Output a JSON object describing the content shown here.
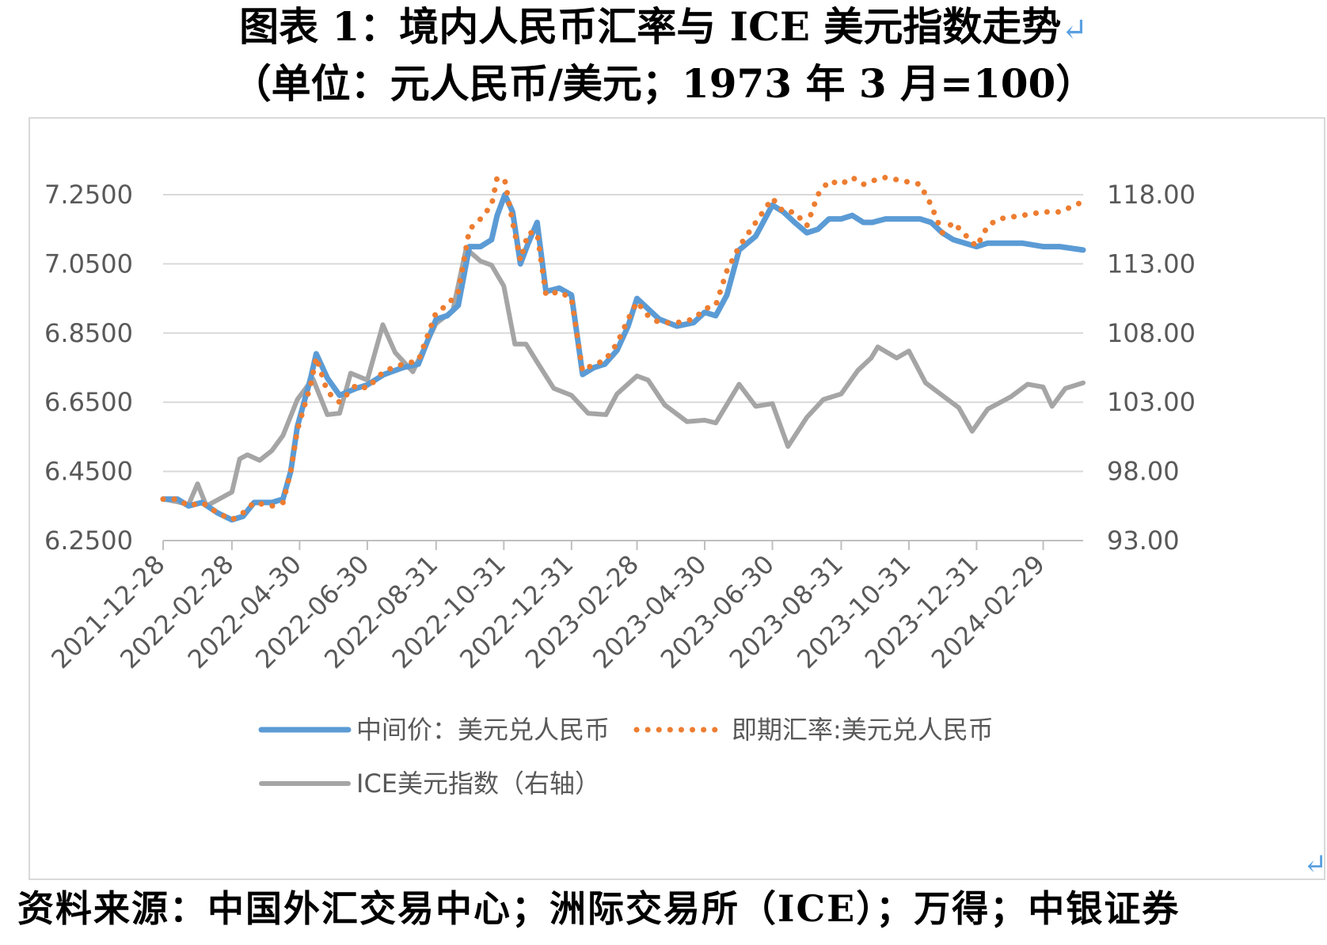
{
  "title_line1": "图表 1：境内人民币汇率与 ICE 美元指数走势",
  "title_line2": "（单位：元人民币/美元；1973 年 3 月=100）",
  "return_mark": "↵",
  "source_text": "资料来源：中国外汇交易中心；洲际交易所（ICE）；万得；中银证券",
  "colors": {
    "series_mid": "#5b9bd5",
    "series_spot": "#ed7d31",
    "series_ice": "#a5a5a5",
    "grid": "#d9d9d9",
    "axis": "#bfbfbf"
  },
  "chart_data": {
    "type": "line",
    "x_tick_labels": [
      "2021-12-28",
      "2022-02-28",
      "2022-04-30",
      "2022-06-30",
      "2022-08-31",
      "2022-10-31",
      "2022-12-31",
      "2023-02-28",
      "2023-04-30",
      "2023-06-30",
      "2023-08-31",
      "2023-10-31",
      "2023-12-31",
      "2024-02-29"
    ],
    "x_range": [
      "2021-12-28",
      "2024-04-05"
    ],
    "y_left": {
      "ticks": [
        "6.2500",
        "6.4500",
        "6.6500",
        "6.8500",
        "7.0500",
        "7.2500"
      ],
      "range": [
        6.25,
        7.25
      ]
    },
    "y_right": {
      "ticks": [
        "93.00",
        "98.00",
        "103.00",
        "108.00",
        "113.00",
        "118.00"
      ],
      "range": [
        93.0,
        118.0
      ]
    },
    "grid": true,
    "legend_position": "bottom",
    "series": [
      {
        "name": "中间价：美元兑人民币",
        "axis": "left",
        "style": "solid",
        "points": [
          [
            "2021-12-28",
            6.37
          ],
          [
            "2022-01-10",
            6.37
          ],
          [
            "2022-01-20",
            6.35
          ],
          [
            "2022-02-01",
            6.36
          ],
          [
            "2022-02-15",
            6.33
          ],
          [
            "2022-02-28",
            6.31
          ],
          [
            "2022-03-10",
            6.32
          ],
          [
            "2022-03-20",
            6.36
          ],
          [
            "2022-04-05",
            6.36
          ],
          [
            "2022-04-15",
            6.37
          ],
          [
            "2022-04-22",
            6.45
          ],
          [
            "2022-04-28",
            6.58
          ],
          [
            "2022-05-10",
            6.72
          ],
          [
            "2022-05-15",
            6.79
          ],
          [
            "2022-05-25",
            6.72
          ],
          [
            "2022-06-05",
            6.67
          ],
          [
            "2022-06-20",
            6.69
          ],
          [
            "2022-06-30",
            6.7
          ],
          [
            "2022-07-15",
            6.73
          ],
          [
            "2022-08-01",
            6.75
          ],
          [
            "2022-08-15",
            6.76
          ],
          [
            "2022-08-31",
            6.89
          ],
          [
            "2022-09-10",
            6.9
          ],
          [
            "2022-09-20",
            6.93
          ],
          [
            "2022-09-30",
            7.1
          ],
          [
            "2022-10-10",
            7.1
          ],
          [
            "2022-10-20",
            7.12
          ],
          [
            "2022-10-25",
            7.19
          ],
          [
            "2022-11-01",
            7.25
          ],
          [
            "2022-11-08",
            7.2
          ],
          [
            "2022-11-15",
            7.05
          ],
          [
            "2022-11-22",
            7.11
          ],
          [
            "2022-11-30",
            7.17
          ],
          [
            "2022-12-08",
            6.97
          ],
          [
            "2022-12-20",
            6.98
          ],
          [
            "2022-12-31",
            6.96
          ],
          [
            "2023-01-10",
            6.73
          ],
          [
            "2023-01-20",
            6.75
          ],
          [
            "2023-01-30",
            6.76
          ],
          [
            "2023-02-10",
            6.8
          ],
          [
            "2023-02-20",
            6.87
          ],
          [
            "2023-02-28",
            6.95
          ],
          [
            "2023-03-10",
            6.92
          ],
          [
            "2023-03-20",
            6.89
          ],
          [
            "2023-04-05",
            6.87
          ],
          [
            "2023-04-20",
            6.88
          ],
          [
            "2023-04-30",
            6.91
          ],
          [
            "2023-05-10",
            6.9
          ],
          [
            "2023-05-20",
            6.96
          ],
          [
            "2023-05-31",
            7.09
          ],
          [
            "2023-06-15",
            7.13
          ],
          [
            "2023-06-30",
            7.22
          ],
          [
            "2023-07-10",
            7.2
          ],
          [
            "2023-07-20",
            7.17
          ],
          [
            "2023-07-31",
            7.14
          ],
          [
            "2023-08-10",
            7.15
          ],
          [
            "2023-08-20",
            7.18
          ],
          [
            "2023-08-31",
            7.18
          ],
          [
            "2023-09-10",
            7.19
          ],
          [
            "2023-09-20",
            7.17
          ],
          [
            "2023-09-28",
            7.17
          ],
          [
            "2023-10-10",
            7.18
          ],
          [
            "2023-11-10",
            7.18
          ],
          [
            "2023-11-20",
            7.17
          ],
          [
            "2023-11-30",
            7.14
          ],
          [
            "2023-12-10",
            7.12
          ],
          [
            "2023-12-31",
            7.1
          ],
          [
            "2024-01-10",
            7.11
          ],
          [
            "2024-01-20",
            7.11
          ],
          [
            "2024-02-10",
            7.11
          ],
          [
            "2024-02-29",
            7.1
          ],
          [
            "2024-03-15",
            7.1
          ],
          [
            "2024-04-05",
            7.09
          ]
        ]
      },
      {
        "name": "即期汇率:美元兑人民币",
        "axis": "left",
        "style": "dotted",
        "points": [
          [
            "2021-12-28",
            6.37
          ],
          [
            "2022-01-10",
            6.37
          ],
          [
            "2022-01-20",
            6.35
          ],
          [
            "2022-02-01",
            6.36
          ],
          [
            "2022-02-15",
            6.33
          ],
          [
            "2022-02-28",
            6.31
          ],
          [
            "2022-03-10",
            6.33
          ],
          [
            "2022-03-20",
            6.36
          ],
          [
            "2022-04-05",
            6.35
          ],
          [
            "2022-04-15",
            6.36
          ],
          [
            "2022-04-22",
            6.45
          ],
          [
            "2022-04-28",
            6.57
          ],
          [
            "2022-05-10",
            6.7
          ],
          [
            "2022-05-15",
            6.78
          ],
          [
            "2022-05-25",
            6.68
          ],
          [
            "2022-06-05",
            6.65
          ],
          [
            "2022-06-20",
            6.7
          ],
          [
            "2022-06-30",
            6.69
          ],
          [
            "2022-07-15",
            6.74
          ],
          [
            "2022-08-01",
            6.76
          ],
          [
            "2022-08-15",
            6.77
          ],
          [
            "2022-08-31",
            6.91
          ],
          [
            "2022-09-10",
            6.93
          ],
          [
            "2022-09-20",
            6.97
          ],
          [
            "2022-09-30",
            7.15
          ],
          [
            "2022-10-10",
            7.18
          ],
          [
            "2022-10-20",
            7.22
          ],
          [
            "2022-10-25",
            7.3
          ],
          [
            "2022-11-01",
            7.29
          ],
          [
            "2022-11-08",
            7.17
          ],
          [
            "2022-11-15",
            7.06
          ],
          [
            "2022-11-22",
            7.14
          ],
          [
            "2022-11-30",
            7.14
          ],
          [
            "2022-12-08",
            6.96
          ],
          [
            "2022-12-20",
            6.97
          ],
          [
            "2022-12-31",
            6.95
          ],
          [
            "2023-01-10",
            6.74
          ],
          [
            "2023-01-20",
            6.76
          ],
          [
            "2023-01-30",
            6.77
          ],
          [
            "2023-02-10",
            6.82
          ],
          [
            "2023-02-20",
            6.89
          ],
          [
            "2023-02-28",
            6.94
          ],
          [
            "2023-03-10",
            6.9
          ],
          [
            "2023-03-20",
            6.88
          ],
          [
            "2023-04-05",
            6.88
          ],
          [
            "2023-04-20",
            6.89
          ],
          [
            "2023-04-30",
            6.92
          ],
          [
            "2023-05-10",
            6.93
          ],
          [
            "2023-05-20",
            7.03
          ],
          [
            "2023-05-31",
            7.1
          ],
          [
            "2023-06-15",
            7.17
          ],
          [
            "2023-06-30",
            7.24
          ],
          [
            "2023-07-10",
            7.2
          ],
          [
            "2023-07-20",
            7.2
          ],
          [
            "2023-07-31",
            7.16
          ],
          [
            "2023-08-10",
            7.25
          ],
          [
            "2023-08-20",
            7.29
          ],
          [
            "2023-08-31",
            7.28
          ],
          [
            "2023-09-10",
            7.3
          ],
          [
            "2023-09-20",
            7.28
          ],
          [
            "2023-09-28",
            7.29
          ],
          [
            "2023-10-10",
            7.3
          ],
          [
            "2023-11-10",
            7.28
          ],
          [
            "2023-11-20",
            7.22
          ],
          [
            "2023-11-30",
            7.14
          ],
          [
            "2023-12-10",
            7.17
          ],
          [
            "2023-12-31",
            7.1
          ],
          [
            "2024-01-10",
            7.16
          ],
          [
            "2024-01-20",
            7.18
          ],
          [
            "2024-02-10",
            7.19
          ],
          [
            "2024-02-29",
            7.2
          ],
          [
            "2024-03-15",
            7.2
          ],
          [
            "2024-04-05",
            7.23
          ]
        ]
      },
      {
        "name": "ICE美元指数（右轴）",
        "axis": "right",
        "style": "solid",
        "points": [
          [
            "2021-12-28",
            96.0
          ],
          [
            "2022-01-10",
            95.8
          ],
          [
            "2022-01-20",
            95.6
          ],
          [
            "2022-01-28",
            97.1
          ],
          [
            "2022-02-05",
            95.5
          ],
          [
            "2022-02-28",
            96.5
          ],
          [
            "2022-03-07",
            98.9
          ],
          [
            "2022-03-14",
            99.2
          ],
          [
            "2022-03-25",
            98.8
          ],
          [
            "2022-04-05",
            99.5
          ],
          [
            "2022-04-15",
            100.6
          ],
          [
            "2022-04-28",
            103.2
          ],
          [
            "2022-05-12",
            104.7
          ],
          [
            "2022-05-25",
            102.1
          ],
          [
            "2022-06-05",
            102.2
          ],
          [
            "2022-06-15",
            105.1
          ],
          [
            "2022-06-30",
            104.6
          ],
          [
            "2022-07-14",
            108.6
          ],
          [
            "2022-07-25",
            106.6
          ],
          [
            "2022-08-10",
            105.2
          ],
          [
            "2022-08-31",
            108.7
          ],
          [
            "2022-09-15",
            109.6
          ],
          [
            "2022-09-27",
            114.1
          ],
          [
            "2022-10-10",
            113.2
          ],
          [
            "2022-10-20",
            112.9
          ],
          [
            "2022-10-31",
            111.4
          ],
          [
            "2022-11-10",
            107.2
          ],
          [
            "2022-11-20",
            107.2
          ],
          [
            "2022-11-30",
            105.9
          ],
          [
            "2022-12-15",
            104.0
          ],
          [
            "2022-12-31",
            103.5
          ],
          [
            "2023-01-15",
            102.2
          ],
          [
            "2023-01-31",
            102.1
          ],
          [
            "2023-02-10",
            103.6
          ],
          [
            "2023-02-28",
            104.9
          ],
          [
            "2023-03-10",
            104.6
          ],
          [
            "2023-03-25",
            102.8
          ],
          [
            "2023-04-14",
            101.6
          ],
          [
            "2023-04-30",
            101.7
          ],
          [
            "2023-05-10",
            101.5
          ],
          [
            "2023-05-31",
            104.3
          ],
          [
            "2023-06-15",
            102.7
          ],
          [
            "2023-06-30",
            102.9
          ],
          [
            "2023-07-14",
            99.8
          ],
          [
            "2023-07-31",
            101.9
          ],
          [
            "2023-08-15",
            103.2
          ],
          [
            "2023-08-31",
            103.6
          ],
          [
            "2023-09-15",
            105.3
          ],
          [
            "2023-09-27",
            106.2
          ],
          [
            "2023-10-03",
            107.0
          ],
          [
            "2023-10-20",
            106.2
          ],
          [
            "2023-10-31",
            106.7
          ],
          [
            "2023-11-15",
            104.4
          ],
          [
            "2023-11-30",
            103.5
          ],
          [
            "2023-12-15",
            102.6
          ],
          [
            "2023-12-27",
            100.9
          ],
          [
            "2024-01-10",
            102.5
          ],
          [
            "2024-01-31",
            103.4
          ],
          [
            "2024-02-15",
            104.3
          ],
          [
            "2024-02-29",
            104.1
          ],
          [
            "2024-03-08",
            102.7
          ],
          [
            "2024-03-20",
            104.0
          ],
          [
            "2024-04-05",
            104.4
          ]
        ]
      }
    ]
  }
}
